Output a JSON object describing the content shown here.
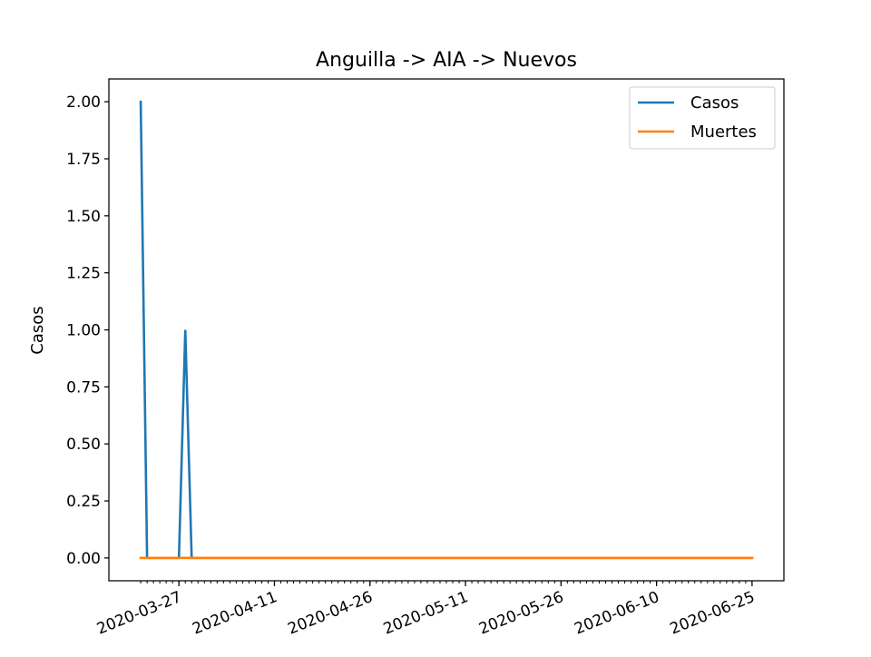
{
  "chart_data": {
    "type": "line",
    "title": "Anguilla -> AIA -> Nuevos",
    "xlabel": "",
    "ylabel": "Casos",
    "x_start": "2020-03-21",
    "x_end": "2020-06-25",
    "xlim": [
      "2020-03-16",
      "2020-06-30"
    ],
    "ylim": [
      -0.1,
      2.1
    ],
    "xticks": [
      "2020-03-27",
      "2020-04-11",
      "2020-04-26",
      "2020-05-11",
      "2020-05-26",
      "2020-06-10",
      "2020-06-25"
    ],
    "xtick_labels": [
      "2020-03-27",
      "2020-04-11",
      "2020-04-26",
      "2020-05-11",
      "2020-05-26",
      "2020-06-10",
      "2020-06-25"
    ],
    "yticks": [
      0.0,
      0.25,
      0.5,
      0.75,
      1.0,
      1.25,
      1.5,
      1.75,
      2.0
    ],
    "ytick_labels": [
      "0.00",
      "0.25",
      "0.50",
      "0.75",
      "1.00",
      "1.25",
      "1.50",
      "1.75",
      "2.00"
    ],
    "grid": false,
    "legend_position": "top-right",
    "series": [
      {
        "name": "Casos",
        "color": "#1f77b4",
        "points": [
          [
            "2020-03-21",
            2
          ],
          [
            "2020-03-22",
            0
          ],
          [
            "2020-03-27",
            0
          ],
          [
            "2020-03-28",
            1
          ],
          [
            "2020-03-29",
            0
          ],
          [
            "2020-06-25",
            0
          ]
        ]
      },
      {
        "name": "Muertes",
        "color": "#ff7f0e",
        "points": [
          [
            "2020-03-21",
            0
          ],
          [
            "2020-06-25",
            0
          ]
        ]
      }
    ]
  }
}
